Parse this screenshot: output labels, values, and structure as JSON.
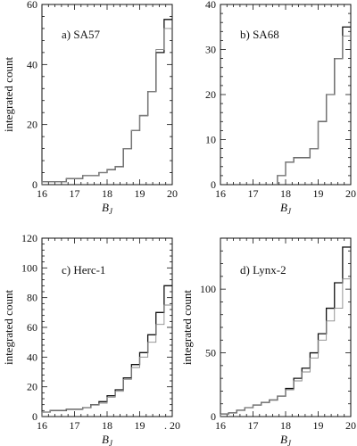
{
  "figure": {
    "y_axis_label": "integrated count",
    "x_axis_label": "B",
    "x_axis_label_sub": "J"
  },
  "chart_data": [
    {
      "type": "line",
      "label": "a) SA57",
      "xlabel": "BJ",
      "ylabel": "integrated count",
      "xlim": [
        16,
        20
      ],
      "ylim": [
        0,
        60
      ],
      "x_ticks": [
        16,
        17,
        18,
        19,
        20
      ],
      "y_ticks": [
        0,
        20,
        40,
        60
      ],
      "y_tick_labels_left": true,
      "bin_edges": [
        16,
        16.25,
        16.5,
        16.75,
        17,
        17.25,
        17.5,
        17.75,
        18,
        18.25,
        18.5,
        18.75,
        19,
        19.25,
        19.5,
        19.75,
        20
      ],
      "series": [
        {
          "values": [
            1,
            1,
            1,
            2,
            2,
            3,
            3,
            4,
            5,
            6,
            12,
            18,
            23,
            31,
            44,
            55
          ]
        },
        {
          "values": [
            1,
            1,
            1,
            2,
            2,
            3,
            3,
            4,
            5,
            6,
            12,
            18,
            23,
            31,
            45,
            52
          ]
        }
      ]
    },
    {
      "type": "line",
      "label": "b) SA68",
      "xlabel": "BJ",
      "ylabel": "",
      "xlim": [
        16,
        20
      ],
      "ylim": [
        0,
        40
      ],
      "x_ticks": [
        16,
        17,
        18,
        19,
        20
      ],
      "y_ticks": [
        0,
        10,
        20,
        30,
        40
      ],
      "y_tick_labels_left": true,
      "bin_edges": [
        16,
        16.25,
        16.5,
        16.75,
        17,
        17.25,
        17.5,
        17.75,
        18,
        18.25,
        18.5,
        18.75,
        19,
        19.25,
        19.5,
        19.75,
        20
      ],
      "series": [
        {
          "values": [
            0,
            0,
            0,
            0,
            0,
            0,
            0,
            2,
            5,
            6,
            6,
            8,
            14,
            20,
            28,
            35
          ]
        },
        {
          "values": [
            0,
            0,
            0,
            0,
            0,
            0,
            0,
            2,
            5,
            6,
            6,
            8,
            14,
            20,
            28,
            33
          ]
        }
      ]
    },
    {
      "type": "line",
      "label": "c) Herc-1",
      "xlabel": "BJ",
      "ylabel": "integrated count",
      "xlim": [
        16,
        20
      ],
      "ylim": [
        0,
        120
      ],
      "x_ticks": [
        16,
        17,
        18,
        19,
        20
      ],
      "y_ticks": [
        0,
        20,
        40,
        60,
        80,
        100,
        120
      ],
      "y_tick_labels_left": true,
      "bin_edges": [
        16,
        16.25,
        16.5,
        16.75,
        17,
        17.25,
        17.5,
        17.75,
        18,
        18.25,
        18.5,
        18.75,
        19,
        19.25,
        19.5,
        19.75,
        20
      ],
      "series": [
        {
          "values": [
            3,
            4,
            4,
            5,
            5,
            6,
            8,
            10,
            14,
            18,
            26,
            35,
            43,
            55,
            70,
            88,
            113
          ]
        },
        {
          "values": [
            3,
            4,
            4,
            5,
            5,
            6,
            8,
            9,
            13,
            17,
            25,
            33,
            40,
            50,
            62,
            75,
            95
          ]
        }
      ],
      "step_count": 17
    },
    {
      "type": "line",
      "label": "d) Lynx-2",
      "xlabel": "BJ",
      "ylabel": "integrated count",
      "xlim": [
        16,
        20
      ],
      "ylim": [
        0,
        140
      ],
      "x_ticks": [
        16,
        17,
        18,
        19,
        20
      ],
      "y_ticks": [
        0,
        50,
        100
      ],
      "y_tick_labels_left": true,
      "bin_edges": [
        16,
        16.25,
        16.5,
        16.75,
        17,
        17.25,
        17.5,
        17.75,
        18,
        18.25,
        18.5,
        18.75,
        19,
        19.25,
        19.5,
        19.75,
        20
      ],
      "series": [
        {
          "values": [
            2,
            3,
            5,
            7,
            9,
            11,
            13,
            16,
            22,
            30,
            38,
            50,
            65,
            85,
            105,
            133
          ]
        },
        {
          "values": [
            2,
            3,
            5,
            7,
            9,
            11,
            13,
            16,
            21,
            28,
            35,
            46,
            60,
            75,
            85,
            108
          ]
        }
      ]
    }
  ],
  "x_tick_labels": {
    "panel_a": [
      "16",
      "17",
      "18",
      "19",
      "20"
    ],
    "panel_b": [
      "16",
      "17",
      "18",
      "19",
      "20"
    ],
    "panel_c": [
      "16",
      "17",
      "18",
      "19",
      ". 20"
    ],
    "panel_d": [
      "16",
      "17",
      "18",
      "19",
      "20"
    ]
  }
}
